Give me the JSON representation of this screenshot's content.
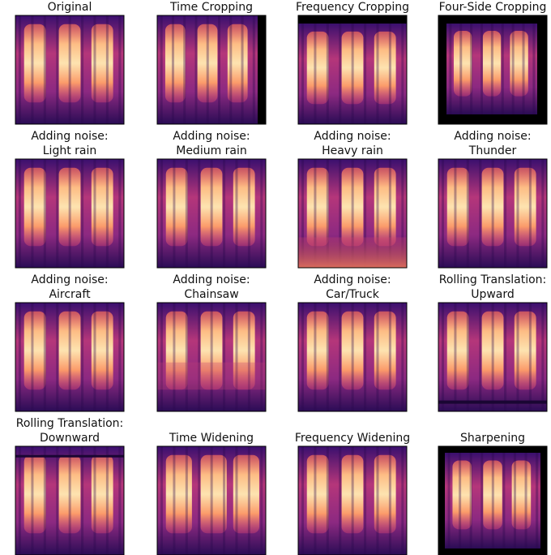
{
  "panels": [
    {
      "title": [
        "Original"
      ]
    },
    {
      "title": [
        "Time Cropping"
      ]
    },
    {
      "title": [
        "Frequency Cropping"
      ]
    },
    {
      "title": [
        "Four-Side Cropping"
      ]
    },
    {
      "title": [
        "Adding noise:",
        "Light rain"
      ]
    },
    {
      "title": [
        "Adding noise:",
        "Medium rain"
      ]
    },
    {
      "title": [
        "Adding noise:",
        "Heavy rain"
      ]
    },
    {
      "title": [
        "Adding noise:",
        "Thunder"
      ]
    },
    {
      "title": [
        "Adding noise:",
        "Aircraft"
      ]
    },
    {
      "title": [
        "Adding noise:",
        "Chainsaw"
      ]
    },
    {
      "title": [
        "Adding noise:",
        "Car/Truck"
      ]
    },
    {
      "title": [
        "Rolling Translation:",
        "Upward"
      ]
    },
    {
      "title": [
        "Rolling Translation:",
        "Downward"
      ]
    },
    {
      "title": [
        "Time Widening"
      ]
    },
    {
      "title": [
        "Frequency Widening"
      ]
    },
    {
      "title": [
        "Sharpening"
      ]
    }
  ]
}
